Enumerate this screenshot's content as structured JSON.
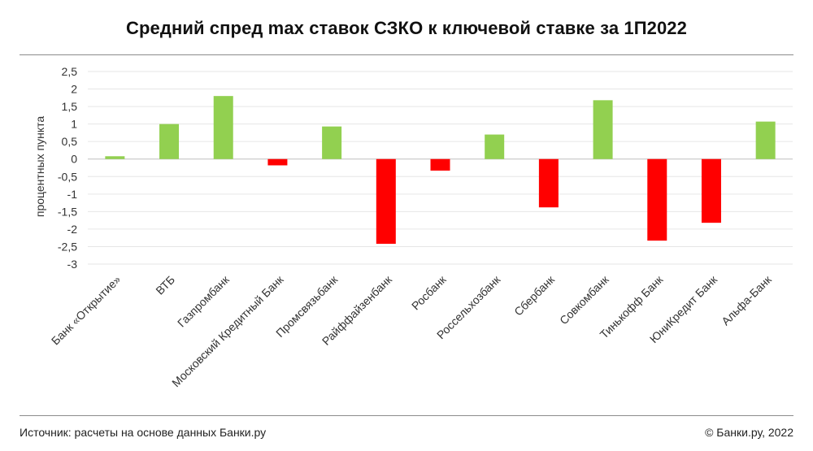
{
  "header": {
    "title": "Средний спред max ставок СЗКО к ключевой ставке за 1П2022"
  },
  "footer": {
    "source": "Источник: расчеты на основе данных Банки.ру",
    "copyright": "© Банки.ру, 2022"
  },
  "colors": {
    "positive": "#92d050",
    "negative": "#ff0000",
    "grid": "#e6e6e6",
    "zero_line": "#bfbfbf",
    "text": "#333333"
  },
  "chart_data": {
    "type": "bar",
    "title": "Средний спред max ставок СЗКО к ключевой ставке за 1П2022",
    "ylabel": "процентных пункта",
    "xlabel": "",
    "ylim": [
      -3,
      2.5
    ],
    "yticks": [
      2.5,
      2,
      1.5,
      1,
      0.5,
      0,
      -0.5,
      -1,
      -1.5,
      -2,
      -2.5,
      -3
    ],
    "ytick_labels": [
      "2,5",
      "2",
      "1,5",
      "1",
      "0,5",
      "0",
      "-0,5",
      "-1",
      "-1,5",
      "-2",
      "-2,5",
      "-3"
    ],
    "grid": true,
    "categories": [
      "Банк «Открытие»",
      "ВТБ",
      "Газпромбанк",
      "Московский Кредитный Банк",
      "Промсвязьбанк",
      "Райффайзенбанк",
      "Росбанк",
      "Россельхозбанк",
      "Сбербанк",
      "Совкомбанк",
      "Тинькофф Банк",
      "ЮниКредит Банк",
      "Альфа-Банк"
    ],
    "values": [
      0.08,
      1.0,
      1.8,
      -0.18,
      0.93,
      -2.42,
      -0.33,
      0.7,
      -1.38,
      1.68,
      -2.33,
      -1.82,
      1.07
    ]
  }
}
